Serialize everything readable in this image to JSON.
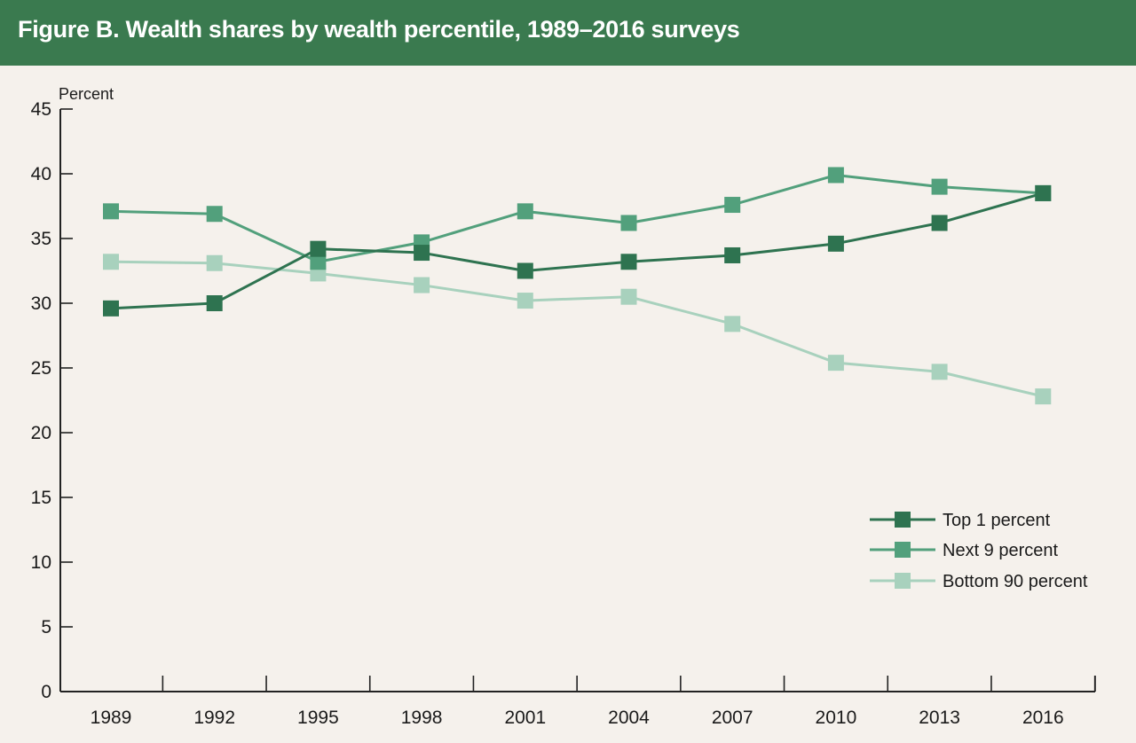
{
  "title": "Figure B. Wealth shares by wealth percentile, 1989–2016 surveys",
  "chart_data": {
    "type": "line",
    "title": "Figure B. Wealth shares by wealth percentile, 1989–2016 surveys",
    "ylabel": "Percent",
    "xlabel": "",
    "x": [
      "1989",
      "1992",
      "1995",
      "1998",
      "2001",
      "2004",
      "2007",
      "2010",
      "2013",
      "2016"
    ],
    "ylim": [
      0,
      45
    ],
    "yticks": [
      0,
      5,
      10,
      15,
      20,
      25,
      30,
      35,
      40,
      45
    ],
    "grid": false,
    "legend_position": "lower-right",
    "series": [
      {
        "name": "Top 1 percent",
        "color": "#2e7350",
        "marker": "square",
        "values": [
          29.6,
          30.0,
          34.2,
          33.9,
          32.5,
          33.2,
          33.7,
          34.6,
          36.2,
          38.5
        ]
      },
      {
        "name": "Next 9 percent",
        "color": "#52a07c",
        "marker": "square",
        "values": [
          37.1,
          36.9,
          33.2,
          34.7,
          37.1,
          36.2,
          37.6,
          39.9,
          39.0,
          38.5
        ]
      },
      {
        "name": "Bottom 90 percent",
        "color": "#a8d1bd",
        "marker": "square",
        "values": [
          33.2,
          33.1,
          32.3,
          31.4,
          30.2,
          30.5,
          28.4,
          25.4,
          24.7,
          22.8
        ]
      }
    ]
  }
}
